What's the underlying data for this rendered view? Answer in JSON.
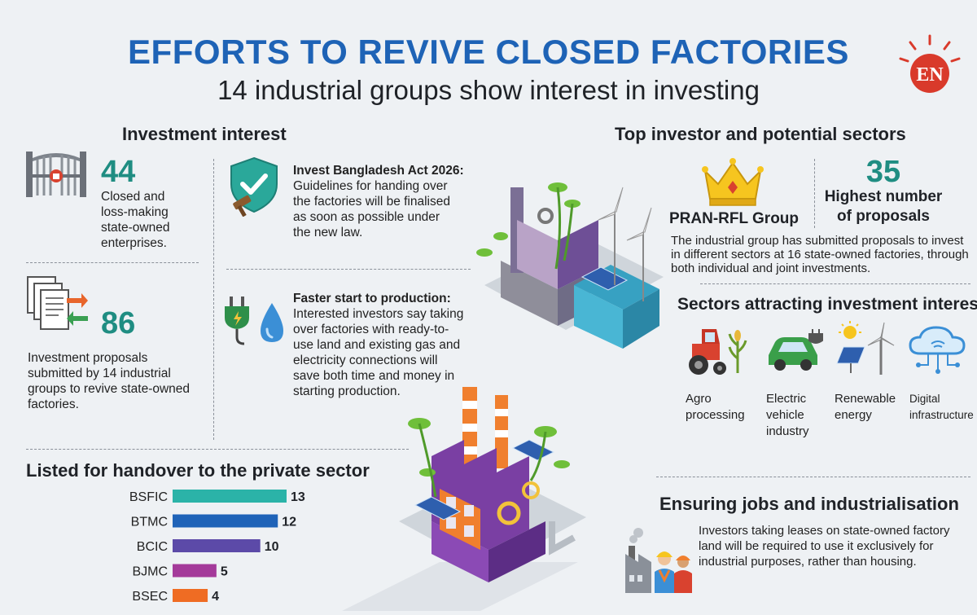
{
  "header": {
    "title": "EFFORTS TO REVIVE CLOSED FACTORIES",
    "subtitle": "14 industrial groups show interest in investing",
    "logo_text": "EN"
  },
  "investment_interest": {
    "heading": "Investment interest",
    "stat1": {
      "value": "44",
      "text": "Closed and loss-making state-owned enterprises."
    },
    "stat2": {
      "value": "86",
      "text": "Investment proposals submitted by 14 industrial groups to revive state-owned factories."
    },
    "act": {
      "title": "Invest Bangladesh Act 2026:",
      "text": "Guidelines for handing over the factories will be finalised as soon as possible under the new law."
    },
    "production": {
      "title": "Faster start to production:",
      "text": "Interested investors say taking over factories with ready-to-use land and existing gas and electricity connections will save both time and money in starting production."
    }
  },
  "top_investor": {
    "heading": "Top investor and potential sectors",
    "name": "PRAN-RFL Group",
    "count": "35",
    "count_label_1": "Highest number",
    "count_label_2": "of proposals",
    "description": "The industrial group has submitted proposals to invest in different sectors at 16 state-owned factories, through both individual and joint investments."
  },
  "sectors": {
    "heading": "Sectors attracting investment interest",
    "items": [
      {
        "icon": "tractor-icon",
        "line1": "Agro",
        "line2": "processing",
        "line3": ""
      },
      {
        "icon": "electric-car-icon",
        "line1": "Electric",
        "line2": "vehicle",
        "line3": "industry"
      },
      {
        "icon": "renewable-energy-icon",
        "line1": "Renewable",
        "line2": "energy",
        "line3": ""
      },
      {
        "icon": "cloud-network-icon",
        "line1": "Digital",
        "line2": "infrastructure",
        "line3": ""
      }
    ]
  },
  "jobs": {
    "heading": "Ensuring jobs and industrialisation",
    "text": "Investors taking leases on state-owned factory land will be required to use it exclusively for industrial purposes, rather than housing."
  },
  "handover": {
    "heading": "Listed for handover to the private sector"
  },
  "chart_data": {
    "type": "bar",
    "orientation": "horizontal",
    "title": "Listed for handover to the private sector",
    "categories": [
      "BSFIC",
      "BTMC",
      "BCIC",
      "BJMC",
      "BSEC"
    ],
    "values": [
      13,
      12,
      10,
      5,
      4
    ],
    "colors": [
      "#2bb3a8",
      "#1f63b8",
      "#5c4aa8",
      "#a43a9a",
      "#ef6c23"
    ],
    "xlim": [
      0,
      13
    ],
    "grid": false,
    "legend": "none"
  }
}
